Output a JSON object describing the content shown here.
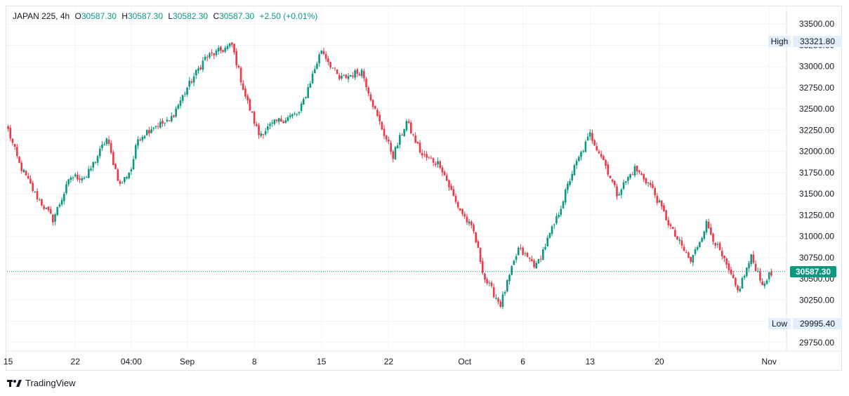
{
  "legend": {
    "symbol": "JAPAN 225",
    "interval": "4h",
    "open_label": "O",
    "open": "30587.30",
    "high_label": "H",
    "high": "30587.30",
    "low_label": "L",
    "low": "30582.30",
    "close_label": "C",
    "close": "30587.30",
    "change": "+2.50 (+0.01%)"
  },
  "price_tags": {
    "high_label": "High",
    "high_value": "33321.80",
    "low_label": "Low",
    "low_value": "29995.40",
    "last_value": "30587.30"
  },
  "branding": {
    "name": "TradingView"
  },
  "colors": {
    "up": "#089981",
    "down": "#f23645",
    "grid": "#f0f3fa",
    "axis_text": "#131722"
  },
  "chart_data": {
    "type": "candlestick",
    "title": "JAPAN 225 · 4h",
    "ylim": [
      29650,
      33700
    ],
    "y_ticks": [
      29750,
      30000,
      30250,
      30500,
      30750,
      31000,
      31250,
      31500,
      31750,
      32000,
      32250,
      32500,
      32750,
      33000,
      33250,
      33500
    ],
    "y_tick_labels": [
      "29750.00",
      "30000.00",
      "30250.00",
      "30500.00",
      "30750.00",
      "31000.00",
      "31250.00",
      "31500.00",
      "31750.00",
      "32000.00",
      "32250.00",
      "32500.00",
      "32750.00",
      "33000.00",
      "33250.00",
      "33500.00"
    ],
    "x_ticks": [
      {
        "label": "15",
        "index": 0
      },
      {
        "label": "22",
        "index": 30
      },
      {
        "label": "04:00",
        "index": 55
      },
      {
        "label": "Sep",
        "index": 80
      },
      {
        "label": "8",
        "index": 110
      },
      {
        "label": "15",
        "index": 140
      },
      {
        "label": "22",
        "index": 170
      },
      {
        "label": "Oct",
        "index": 204
      },
      {
        "label": "6",
        "index": 230
      },
      {
        "label": "13",
        "index": 260
      },
      {
        "label": "20",
        "index": 291
      },
      {
        "label": "Nov",
        "index": 340
      }
    ],
    "last_price": 30587.3,
    "high": 33321.8,
    "low": 29995.4,
    "waypoints": [
      [
        0,
        32250
      ],
      [
        5,
        31850
      ],
      [
        12,
        31500
      ],
      [
        20,
        31200
      ],
      [
        28,
        31700
      ],
      [
        35,
        31700
      ],
      [
        44,
        32150
      ],
      [
        50,
        31600
      ],
      [
        55,
        31800
      ],
      [
        58,
        32150
      ],
      [
        65,
        32300
      ],
      [
        72,
        32350
      ],
      [
        80,
        32750
      ],
      [
        88,
        33100
      ],
      [
        100,
        33250
      ],
      [
        106,
        32650
      ],
      [
        112,
        32200
      ],
      [
        120,
        32350
      ],
      [
        130,
        32450
      ],
      [
        140,
        33200
      ],
      [
        148,
        32850
      ],
      [
        158,
        32950
      ],
      [
        165,
        32400
      ],
      [
        172,
        31950
      ],
      [
        178,
        32350
      ],
      [
        185,
        31950
      ],
      [
        193,
        31850
      ],
      [
        200,
        31400
      ],
      [
        208,
        31050
      ],
      [
        213,
        30500
      ],
      [
        220,
        30200
      ],
      [
        228,
        30850
      ],
      [
        236,
        30650
      ],
      [
        245,
        31200
      ],
      [
        252,
        31750
      ],
      [
        260,
        32200
      ],
      [
        266,
        31900
      ],
      [
        272,
        31500
      ],
      [
        280,
        31800
      ],
      [
        287,
        31600
      ],
      [
        297,
        31050
      ],
      [
        305,
        30700
      ],
      [
        312,
        31150
      ],
      [
        320,
        30700
      ],
      [
        326,
        30350
      ],
      [
        332,
        30750
      ],
      [
        338,
        30400
      ],
      [
        340,
        30580
      ]
    ]
  }
}
